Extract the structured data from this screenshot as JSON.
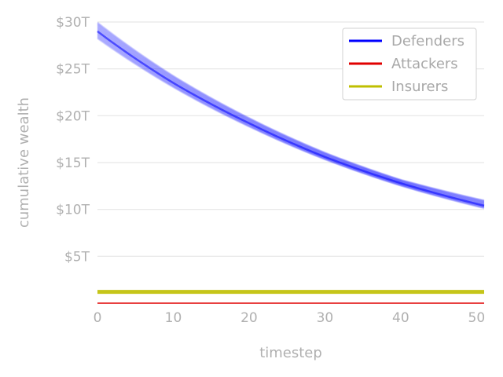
{
  "chart_data": {
    "type": "line",
    "title": "",
    "xlabel": "timestep",
    "ylabel": "cumulative wealth",
    "xlim": [
      0,
      51
    ],
    "ylim": [
      0,
      30
    ],
    "y_unit": "trillion USD",
    "x_ticks": [
      0,
      10,
      20,
      30,
      40,
      50
    ],
    "x_tick_labels": [
      "0",
      "10",
      "20",
      "30",
      "40",
      "50"
    ],
    "y_ticks": [
      5,
      10,
      15,
      20,
      25,
      30
    ],
    "y_tick_labels": [
      "$5T",
      "$10T",
      "$15T",
      "$20T",
      "$25T",
      "$30T"
    ],
    "grid": "horizontal",
    "legend_position": "top-right",
    "colors": {
      "Defenders": "#0000ff",
      "Attackers": "#e00000",
      "Insurers": "#bfbf00"
    },
    "series": [
      {
        "name": "Defenders",
        "note_runs": "many overlapping simulation runs (semi-transparent band)",
        "x": [
          0,
          10,
          20,
          30,
          40,
          51
        ],
        "values": [
          29.0,
          23.5,
          19.2,
          15.6,
          12.8,
          10.4
        ],
        "band_low": [
          28.2,
          23.0,
          18.8,
          15.3,
          12.5,
          10.1
        ],
        "band_high": [
          30.0,
          24.3,
          19.8,
          16.1,
          13.2,
          11.0
        ]
      },
      {
        "name": "Attackers",
        "x": [
          0,
          51
        ],
        "values": [
          0.0,
          0.0
        ]
      },
      {
        "name": "Insurers",
        "x": [
          0,
          51
        ],
        "values": [
          1.2,
          1.2
        ]
      }
    ]
  }
}
